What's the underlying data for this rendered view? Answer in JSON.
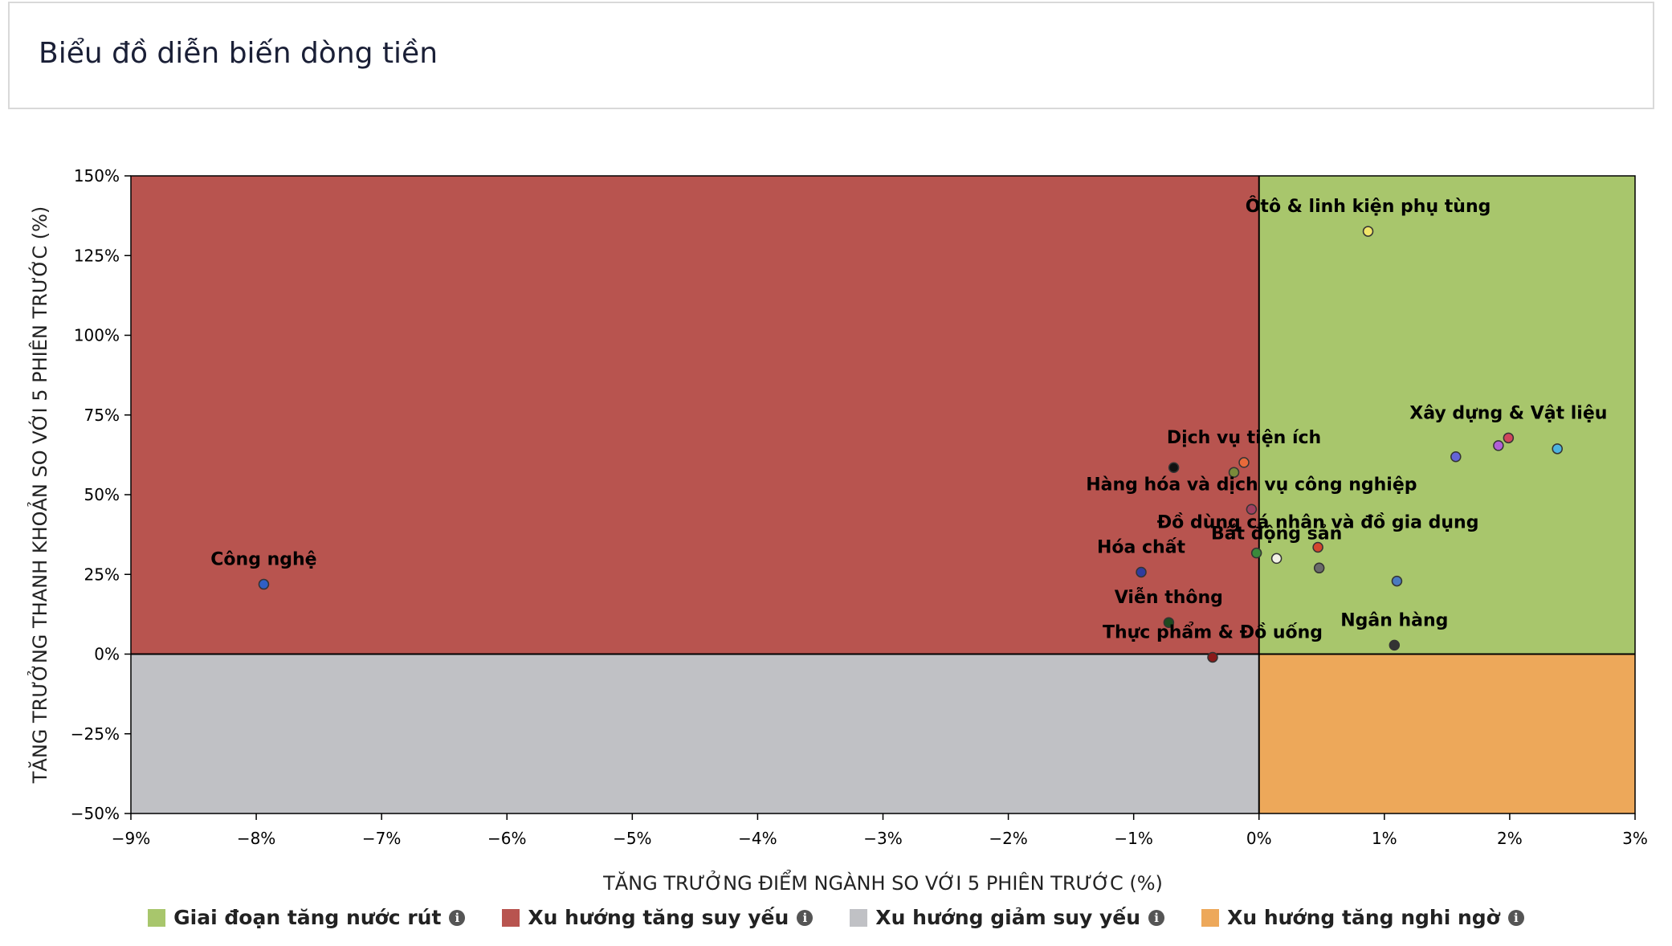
{
  "header": {
    "title": "Biểu đồ diễn biến dòng tiền"
  },
  "chart_data": {
    "type": "scatter",
    "title": "",
    "xlabel": "TĂNG TRƯỞNG ĐIỂM NGÀNH SO VỚI 5 PHIÊN TRƯỚC (%)",
    "ylabel": "TĂNG TRƯỞNG THANH KHOẢN SO VỚI 5 PHIÊN TRƯỚC (%)",
    "xlim": [
      -9,
      3
    ],
    "ylim": [
      -50,
      150
    ],
    "x_ticks": [
      -9,
      -8,
      -7,
      -6,
      -5,
      -4,
      -3,
      -2,
      -1,
      0,
      1,
      2,
      3
    ],
    "x_tick_labels": [
      "−9%",
      "−8%",
      "−7%",
      "−6%",
      "−5%",
      "−4%",
      "−3%",
      "−2%",
      "−1%",
      "0%",
      "1%",
      "2%",
      "3%"
    ],
    "y_ticks": [
      -50,
      -25,
      0,
      25,
      50,
      75,
      100,
      125,
      150
    ],
    "y_tick_labels": [
      "−50%",
      "−25%",
      "0%",
      "25%",
      "50%",
      "75%",
      "100%",
      "125%",
      "150%"
    ],
    "quadrants": [
      {
        "name": "Giai đoạn tăng nước rút",
        "color": "#a8c66c",
        "x": [
          0,
          3
        ],
        "y": [
          0,
          150
        ]
      },
      {
        "name": "Xu hướng tăng suy yếu",
        "color": "#b8544f",
        "x": [
          -9,
          0
        ],
        "y": [
          0,
          150
        ]
      },
      {
        "name": "Xu hướng giảm suy yếu",
        "color": "#c0c1c5",
        "x": [
          -9,
          0
        ],
        "y": [
          -50,
          0
        ]
      },
      {
        "name": "Xu hướng tăng nghi ngờ",
        "color": "#eda85a",
        "x": [
          0,
          3
        ],
        "y": [
          -50,
          0
        ]
      }
    ],
    "points": [
      {
        "label": "Ôtô & linh kiện phụ tùng",
        "x": 0.87,
        "y": 132.6,
        "color": "#f0e56a"
      },
      {
        "label": "Xây dựng & Vật liệu",
        "x": 1.99,
        "y": 67.8,
        "color": "#d0455c"
      },
      {
        "label": "",
        "x": 1.91,
        "y": 65.4,
        "color": "#b15fd6"
      },
      {
        "label": "",
        "x": 2.38,
        "y": 64.4,
        "color": "#4db3e0"
      },
      {
        "label": "",
        "x": 1.57,
        "y": 61.9,
        "color": "#6464d6"
      },
      {
        "label": "Dịch vụ tiện ích",
        "x": -0.12,
        "y": 60.1,
        "color": "#e86a3a"
      },
      {
        "label": "",
        "x": -0.68,
        "y": 58.5,
        "color": "#111111"
      },
      {
        "label": "",
        "x": -0.2,
        "y": 57.0,
        "color": "#7a8a3a"
      },
      {
        "label": "Hàng hóa và dịch vụ công nghiệp",
        "x": -0.06,
        "y": 45.4,
        "color": "#a04060"
      },
      {
        "label": "Đồ dùng cá nhân và đồ gia dụng",
        "x": 0.47,
        "y": 33.5,
        "color": "#d4452f"
      },
      {
        "label": "",
        "x": -0.02,
        "y": 31.7,
        "color": "#3b8a3b"
      },
      {
        "label": "Bất động sản",
        "x": 0.14,
        "y": 30.0,
        "color": "#f2f2e6"
      },
      {
        "label": "",
        "x": 0.48,
        "y": 27.0,
        "color": "#6a6a6a"
      },
      {
        "label": "Hóa chất",
        "x": -0.94,
        "y": 25.7,
        "color": "#2f3c9e"
      },
      {
        "label": "",
        "x": 1.1,
        "y": 22.9,
        "color": "#4a7ac0"
      },
      {
        "label": "Công nghệ",
        "x": -7.94,
        "y": 21.9,
        "color": "#2f5fc4"
      },
      {
        "label": "Viễn thông",
        "x": -0.72,
        "y": 9.9,
        "color": "#1f4a1f"
      },
      {
        "label": "Ngân hàng",
        "x": 1.08,
        "y": 2.8,
        "color": "#333333"
      },
      {
        "label": "Thực phẩm & Đồ uống",
        "x": -0.37,
        "y": -1.0,
        "color": "#8a1a1a"
      }
    ]
  },
  "legend": [
    {
      "label": "Giai đoạn tăng nước rút",
      "color": "#a8c66c",
      "icon": "info-icon",
      "icon_glyph": "i"
    },
    {
      "label": "Xu hướng tăng suy yếu",
      "color": "#b8544f",
      "icon": "info-icon",
      "icon_glyph": "i"
    },
    {
      "label": "Xu hướng giảm suy yếu",
      "color": "#c0c1c5",
      "icon": "info-icon",
      "icon_glyph": "i"
    },
    {
      "label": "Xu hướng tăng nghi ngờ",
      "color": "#eda85a",
      "icon": "info-icon",
      "icon_glyph": "i"
    }
  ]
}
